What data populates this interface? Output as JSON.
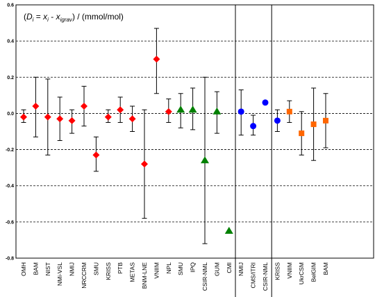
{
  "chart_data": {
    "type": "scatter",
    "title": "(D_i = x_i - x_igrav) / (mmol/mol)",
    "title_parts": {
      "open": "(",
      "d": "D",
      "d_sub": "i",
      "eq": " = ",
      "x": "x",
      "x_sub": "i",
      "minus": " - ",
      "x2": "x",
      "x2_sub": "igrav",
      "close": ") / (mmol/mol)"
    },
    "xlabel": "",
    "ylabel": "",
    "ylim": [
      -0.8,
      0.6
    ],
    "yticks": [
      0.6,
      0.4,
      0.2,
      0.0,
      -0.2,
      -0.4,
      -0.6,
      -0.8
    ],
    "ytick_labels": [
      "0.6",
      "0.4",
      "0.2",
      "0.0",
      "-0.2",
      "-0.4",
      "-0.6",
      "-0.8"
    ],
    "grid": "horizontal dashed",
    "legend": "none",
    "separators_after_index": [
      18,
      21
    ],
    "series": [
      {
        "marker": "diamond",
        "color": "#ff0000",
        "points": [
          {
            "label": "OMH",
            "index": 0,
            "y": -0.02,
            "err_low": -0.05,
            "err_high": 0.02
          },
          {
            "label": "BAM",
            "index": 1,
            "y": 0.04,
            "err_low": -0.13,
            "err_high": 0.2
          },
          {
            "label": "NIST",
            "index": 2,
            "y": -0.02,
            "err_low": -0.23,
            "err_high": 0.19
          },
          {
            "label": "NMi-VSL",
            "index": 3,
            "y": -0.03,
            "err_low": -0.15,
            "err_high": 0.09
          },
          {
            "label": "NMIJ",
            "index": 4,
            "y": -0.04,
            "err_low": -0.11,
            "err_high": 0.02
          },
          {
            "label": "NRCCRM",
            "index": 5,
            "y": 0.04,
            "err_low": -0.07,
            "err_high": 0.15
          },
          {
            "label": "SMU",
            "index": 6,
            "y": -0.23,
            "err_low": -0.32,
            "err_high": -0.13
          },
          {
            "label": "KRISS",
            "index": 7,
            "y": -0.02,
            "err_low": -0.05,
            "err_high": 0.02
          },
          {
            "label": "PTB",
            "index": 8,
            "y": 0.02,
            "err_low": -0.05,
            "err_high": 0.09
          },
          {
            "label": "METAS",
            "index": 9,
            "y": -0.03,
            "err_low": -0.1,
            "err_high": 0.04
          },
          {
            "label": "BNM-LNE",
            "index": 10,
            "y": -0.28,
            "err_low": -0.58,
            "err_high": 0.02
          },
          {
            "label": "VNIIM",
            "index": 11,
            "y": 0.3,
            "err_low": 0.11,
            "err_high": 0.47
          },
          {
            "label": "NPL",
            "index": 12,
            "y": 0.01,
            "err_low": -0.05,
            "err_high": 0.08
          }
        ]
      },
      {
        "marker": "triangle",
        "color": "#008000",
        "points": [
          {
            "label": "SMU",
            "index": 13,
            "y": 0.02,
            "err_low": -0.08,
            "err_high": 0.11
          },
          {
            "label": "IPQ",
            "index": 14,
            "y": 0.02,
            "err_low": -0.09,
            "err_high": 0.14
          },
          {
            "label": "CSIR-NML",
            "index": 15,
            "y": -0.26,
            "err_low": -0.72,
            "err_high": 0.2
          },
          {
            "label": "GUM",
            "index": 16,
            "y": 0.01,
            "err_low": -0.11,
            "err_high": 0.12
          },
          {
            "label": "CMI",
            "index": 17,
            "y": -0.65,
            "err_low": null,
            "err_high": null
          }
        ]
      },
      {
        "marker": "circle",
        "color": "#0000ff",
        "points": [
          {
            "label": "NMIJ",
            "index": 18,
            "y": 0.01,
            "err_low": -0.12,
            "err_high": 0.13
          },
          {
            "label": "CMS/ITRI",
            "index": 19,
            "y": -0.07,
            "err_low": -0.12,
            "err_high": -0.01
          },
          {
            "label": "CSIR-NML",
            "index": 20,
            "y": 0.06,
            "err_low": null,
            "err_high": null
          },
          {
            "label": "KRISS",
            "index": 21,
            "y": -0.04,
            "err_low": -0.1,
            "err_high": 0.02
          }
        ]
      },
      {
        "marker": "square",
        "color": "#ff6600",
        "points": [
          {
            "label": "VNIIM",
            "index": 22,
            "y": 0.01,
            "err_low": -0.05,
            "err_high": 0.07
          },
          {
            "label": "UkrCSM",
            "index": 23,
            "y": -0.11,
            "err_low": -0.23,
            "err_high": 0.01
          },
          {
            "label": "BelGIM",
            "index": 24,
            "y": -0.06,
            "err_low": -0.26,
            "err_high": 0.14
          },
          {
            "label": "BAM",
            "index": 25,
            "y": -0.04,
            "err_low": -0.19,
            "err_high": 0.11
          }
        ]
      }
    ]
  }
}
